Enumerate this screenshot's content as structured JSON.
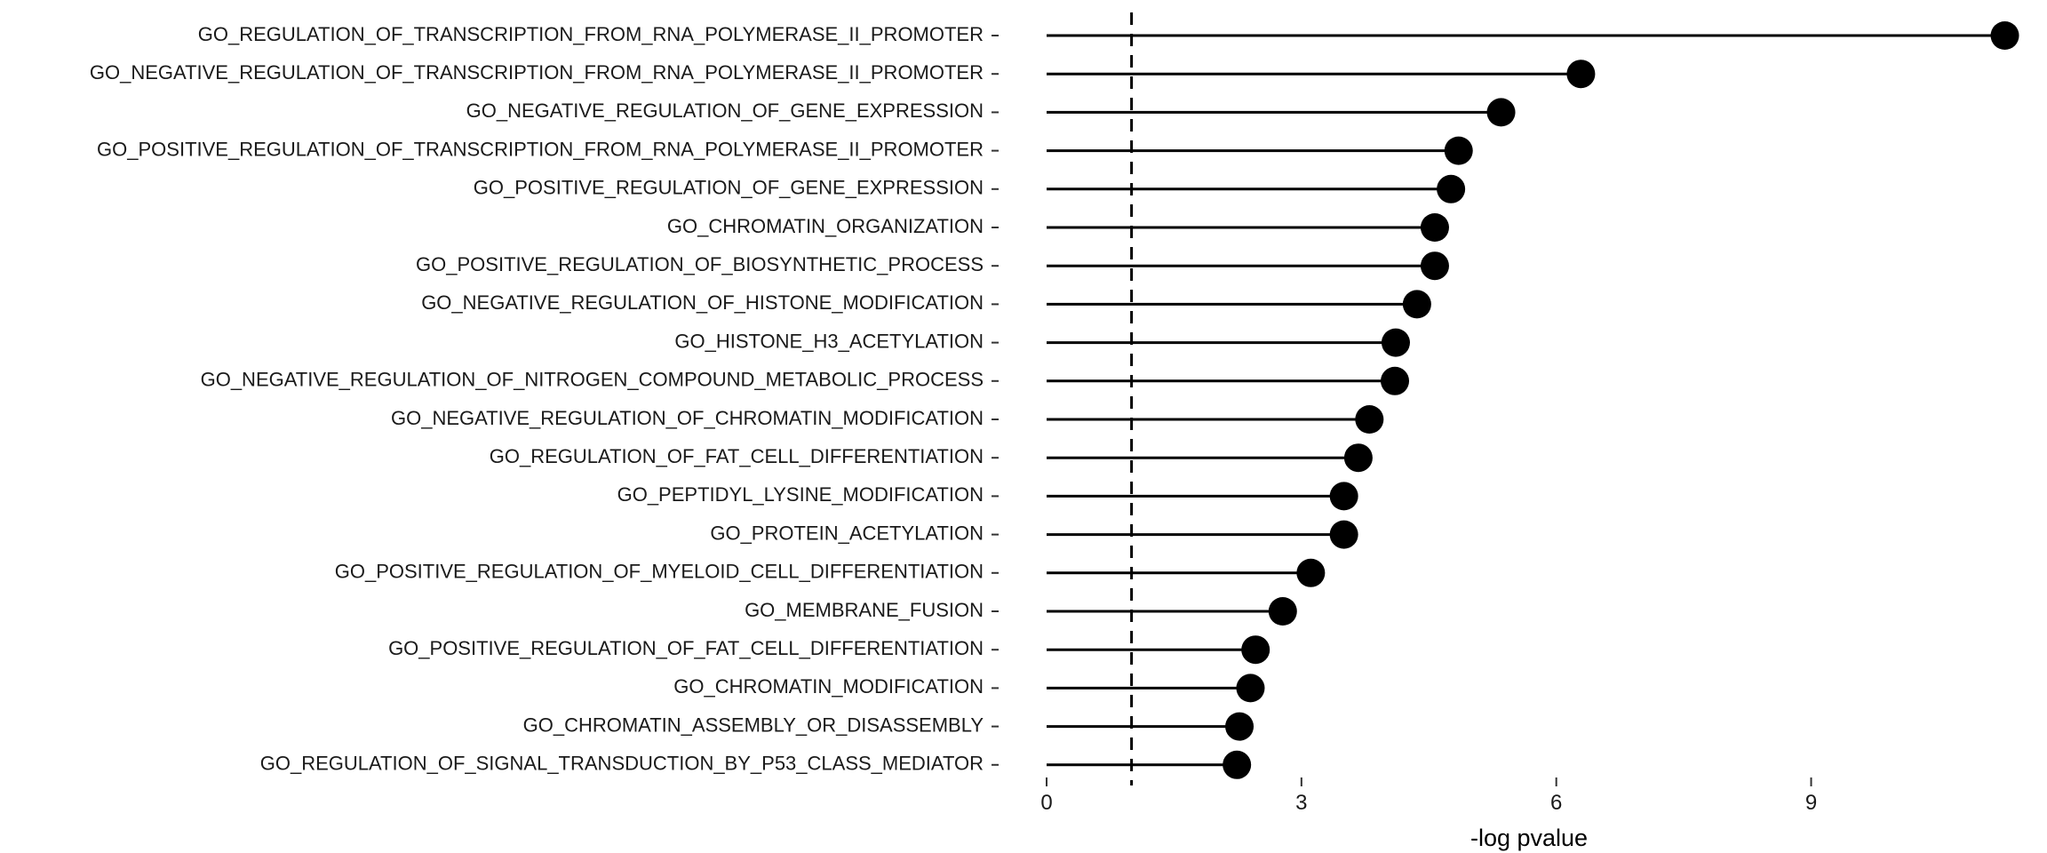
{
  "chart_data": {
    "type": "lollipop",
    "xlabel": "-log pvalue",
    "xlim": [
      0,
      11.4
    ],
    "xticks": [
      0,
      3,
      6,
      9
    ],
    "reference_line": {
      "x": 1,
      "style": "dashed"
    },
    "grid": false,
    "legend": "none",
    "colors": {
      "point": "#000000",
      "stem": "#000000",
      "reference": "#000000"
    },
    "categories": [
      "GO_REGULATION_OF_TRANSCRIPTION_FROM_RNA_POLYMERASE_II_PROMOTER",
      "GO_NEGATIVE_REGULATION_OF_TRANSCRIPTION_FROM_RNA_POLYMERASE_II_PROMOTER",
      "GO_NEGATIVE_REGULATION_OF_GENE_EXPRESSION",
      "GO_POSITIVE_REGULATION_OF_TRANSCRIPTION_FROM_RNA_POLYMERASE_II_PROMOTER",
      "GO_POSITIVE_REGULATION_OF_GENE_EXPRESSION",
      "GO_CHROMATIN_ORGANIZATION",
      "GO_POSITIVE_REGULATION_OF_BIOSYNTHETIC_PROCESS",
      "GO_NEGATIVE_REGULATION_OF_HISTONE_MODIFICATION",
      "GO_HISTONE_H3_ACETYLATION",
      "GO_NEGATIVE_REGULATION_OF_NITROGEN_COMPOUND_METABOLIC_PROCESS",
      "GO_NEGATIVE_REGULATION_OF_CHROMATIN_MODIFICATION",
      "GO_REGULATION_OF_FAT_CELL_DIFFERENTIATION",
      "GO_PEPTIDYL_LYSINE_MODIFICATION",
      "GO_PROTEIN_ACETYLATION",
      "GO_POSITIVE_REGULATION_OF_MYELOID_CELL_DIFFERENTIATION",
      "GO_MEMBRANE_FUSION",
      "GO_POSITIVE_REGULATION_OF_FAT_CELL_DIFFERENTIATION",
      "GO_CHROMATIN_MODIFICATION",
      "GO_CHROMATIN_ASSEMBLY_OR_DISASSEMBLY",
      "GO_REGULATION_OF_SIGNAL_TRANSDUCTION_BY_P53_CLASS_MEDIATOR"
    ],
    "values": [
      11.28,
      6.29,
      5.35,
      4.85,
      4.76,
      4.57,
      4.57,
      4.36,
      4.11,
      4.1,
      3.8,
      3.67,
      3.5,
      3.5,
      3.11,
      2.78,
      2.46,
      2.4,
      2.27,
      2.24
    ]
  }
}
